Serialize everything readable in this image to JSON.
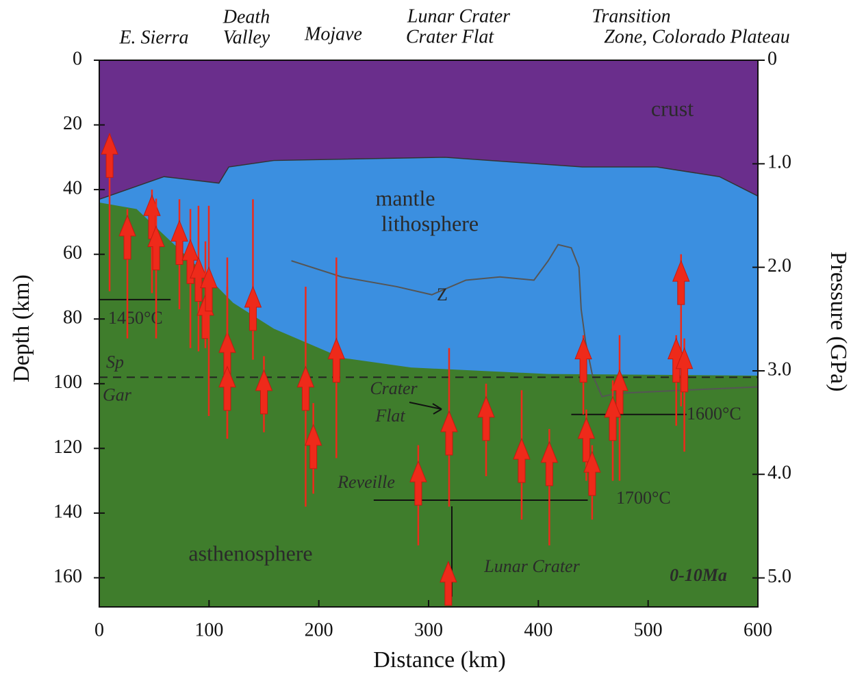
{
  "chart_data": {
    "type": "cross-section",
    "header_labels": [
      "E. Sierra",
      "Death",
      "Valley",
      "Mojave",
      "Lunar Crater",
      "Crater Flat",
      "Transition",
      "Zone, Colorado Plateau"
    ],
    "region_labels": [
      "crust",
      "mantle",
      "lithosphere",
      "asthenosphere"
    ],
    "annotations": [
      "Z",
      "Crater",
      "Flat",
      "Reveille",
      "Lunar Crater",
      "0-10Ma"
    ],
    "x_label": "Distance (km)",
    "y_label": "Depth (km)",
    "y2_label": "Pressure (GPa)",
    "xlim": [
      0,
      600
    ],
    "xticks": [
      0,
      100,
      200,
      300,
      400,
      500,
      600
    ],
    "ylim": [
      0,
      169
    ],
    "y_inverted": true,
    "yticks": [
      0,
      20,
      40,
      60,
      80,
      100,
      120,
      140,
      160
    ],
    "y2lim": [
      0,
      5.28
    ],
    "y2ticks": [
      0,
      {
        "value": 1,
        "label": "1.0"
      },
      {
        "value": 2,
        "label": "2.0"
      },
      {
        "value": 3,
        "label": "3.0"
      },
      {
        "value": 4,
        "label": "4.0"
      },
      {
        "value": 5,
        "label": "5.0"
      }
    ],
    "crust_color": "#6a2e8c",
    "mantle_color": "#3b8fe0",
    "asthenosphere_color": "#3f7d2c",
    "arrow_color": "#ee2a1a",
    "moho": {
      "x": [
        0,
        59,
        109,
        118,
        159,
        315,
        440,
        508,
        565,
        600
      ],
      "depth": [
        43,
        36,
        38,
        33,
        31,
        30,
        33,
        33,
        36,
        42
      ]
    },
    "lab": {
      "x": [
        0,
        34,
        84,
        122,
        159,
        221,
        284,
        409,
        600
      ],
      "depth": [
        44,
        46,
        62,
        75,
        83,
        92,
        95,
        97,
        97.5
      ]
    },
    "z_line": {
      "x": [
        175,
        221,
        271,
        303,
        334,
        365,
        396,
        409,
        418,
        430,
        437,
        439,
        443,
        449,
        458,
        471,
        502,
        533,
        600
      ],
      "depth": [
        62,
        67,
        70,
        72.5,
        68,
        67,
        68,
        62,
        57,
        58,
        64,
        77,
        87,
        97,
        104,
        103,
        102.5,
        102,
        101
      ]
    },
    "sp_gar": {
      "labels": [
        "Sp",
        "Gar"
      ],
      "depth": 98
    },
    "isotherms": [
      {
        "label": "1450°C",
        "depth": 74,
        "x": [
          0,
          65
        ]
      },
      {
        "label": "1600°C",
        "depth": 109.5,
        "x": [
          430,
          535
        ]
      },
      {
        "label": "1700°C",
        "depth": 136,
        "x": [
          250,
          445
        ]
      }
    ],
    "arrows": {
      "x": [
        9.4,
        25.6,
        48,
        51.8,
        73,
        83,
        90.4,
        96.7,
        99.8,
        116.6,
        116.6,
        140,
        150,
        188,
        195,
        216,
        290.6,
        318.7,
        318,
        352.4,
        384.8,
        410,
        441,
        443.7,
        449,
        474,
        467.8,
        530,
        525.6,
        533
      ],
      "depth": [
        22.7,
        48,
        41.7,
        51.3,
        49.6,
        55.5,
        61,
        72.5,
        64,
        84,
        94.7,
        70,
        95.8,
        94.7,
        112.7,
        86,
        124,
        108.5,
        155,
        104,
        117,
        118,
        86,
        110.6,
        121,
        95.8,
        104,
        62,
        86,
        89
      ],
      "range_top": [
        22.7,
        46,
        40,
        42.8,
        43,
        46,
        45,
        56,
        45,
        61,
        70,
        43,
        91.5,
        70,
        106,
        61,
        119,
        89,
        null,
        100,
        102,
        114,
        85,
        108,
        119,
        85,
        99,
        60,
        85,
        86
      ],
      "range_bottom": [
        71.4,
        86,
        72,
        86,
        77,
        89,
        90,
        89,
        110,
        117,
        117,
        92.6,
        115,
        138,
        134,
        123,
        150,
        138,
        null,
        128.6,
        142,
        150,
        109.5,
        130,
        142,
        130,
        130,
        107,
        113,
        121
      ]
    }
  }
}
